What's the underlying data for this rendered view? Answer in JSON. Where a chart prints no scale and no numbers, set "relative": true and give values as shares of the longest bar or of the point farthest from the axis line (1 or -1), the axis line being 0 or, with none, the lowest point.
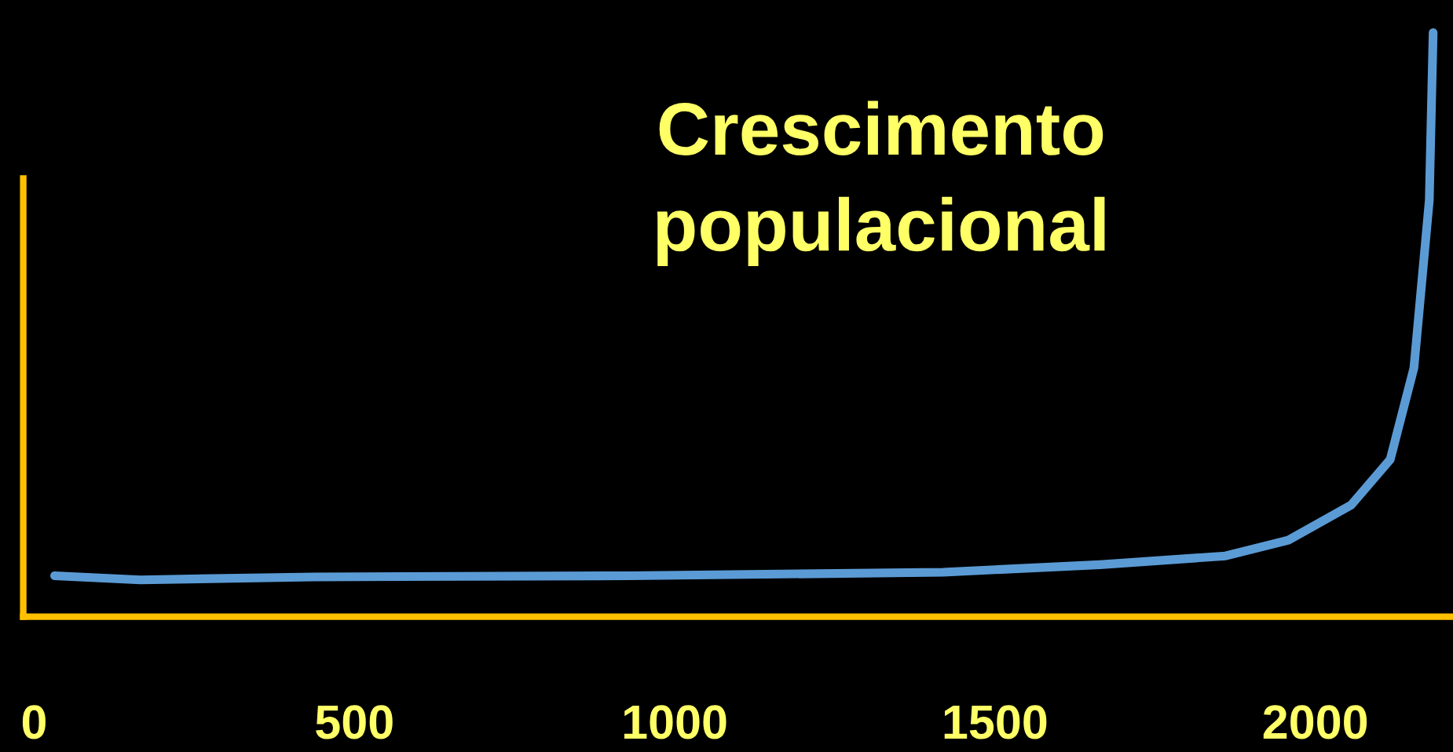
{
  "chart_data": {
    "type": "line",
    "title": "Crescimento\npopulacional",
    "relative": true,
    "x": [
      32,
      166,
      437,
      928,
      1419,
      1664,
      1860,
      1958,
      2056,
      2117,
      2154,
      2178,
      2184
    ],
    "series": [
      {
        "color": "#5b9bd5",
        "values": [
          0.07,
          0.063,
          0.068,
          0.07,
          0.076,
          0.089,
          0.104,
          0.131,
          0.191,
          0.269,
          0.426,
          0.713,
          1.0
        ]
      }
    ],
    "xlim": [
      -17,
      2215
    ],
    "xticks": [
      0,
      500,
      1000,
      1500,
      2000
    ],
    "grid": false,
    "legend": false,
    "marker": "none",
    "line_style": "solid",
    "tick_labels": "x"
  }
}
